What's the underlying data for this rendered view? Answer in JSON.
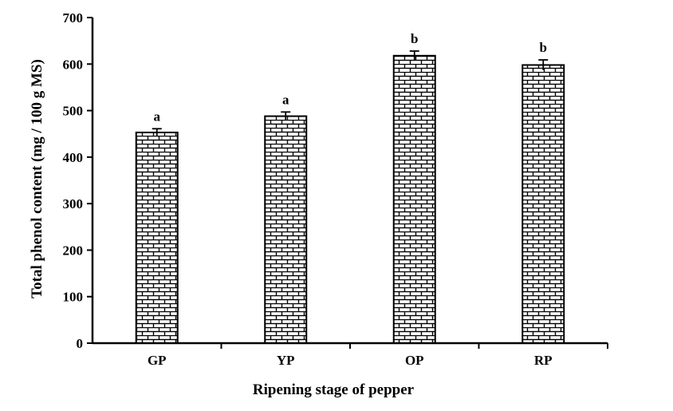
{
  "chart_data": {
    "type": "bar",
    "categories": [
      "GP",
      "YP",
      "OP",
      "RP"
    ],
    "values": [
      453,
      488,
      618,
      598
    ],
    "errors": [
      8,
      9,
      10,
      11
    ],
    "significance": [
      "a",
      "a",
      "b",
      "b"
    ],
    "xlabel": "Ripening stage of pepper",
    "ylabel": "Total phenol content (mg / 100 g MS)",
    "ylim": [
      0,
      700
    ],
    "yticks": [
      "0",
      "100",
      "200",
      "300",
      "400",
      "500",
      "600",
      "700"
    ],
    "bar_fill": "brick-pattern",
    "colors": {
      "axis": "#000000",
      "bar_fill": "#ffffff",
      "bar_pattern": "#000000"
    },
    "grid": false,
    "legend": "none"
  }
}
